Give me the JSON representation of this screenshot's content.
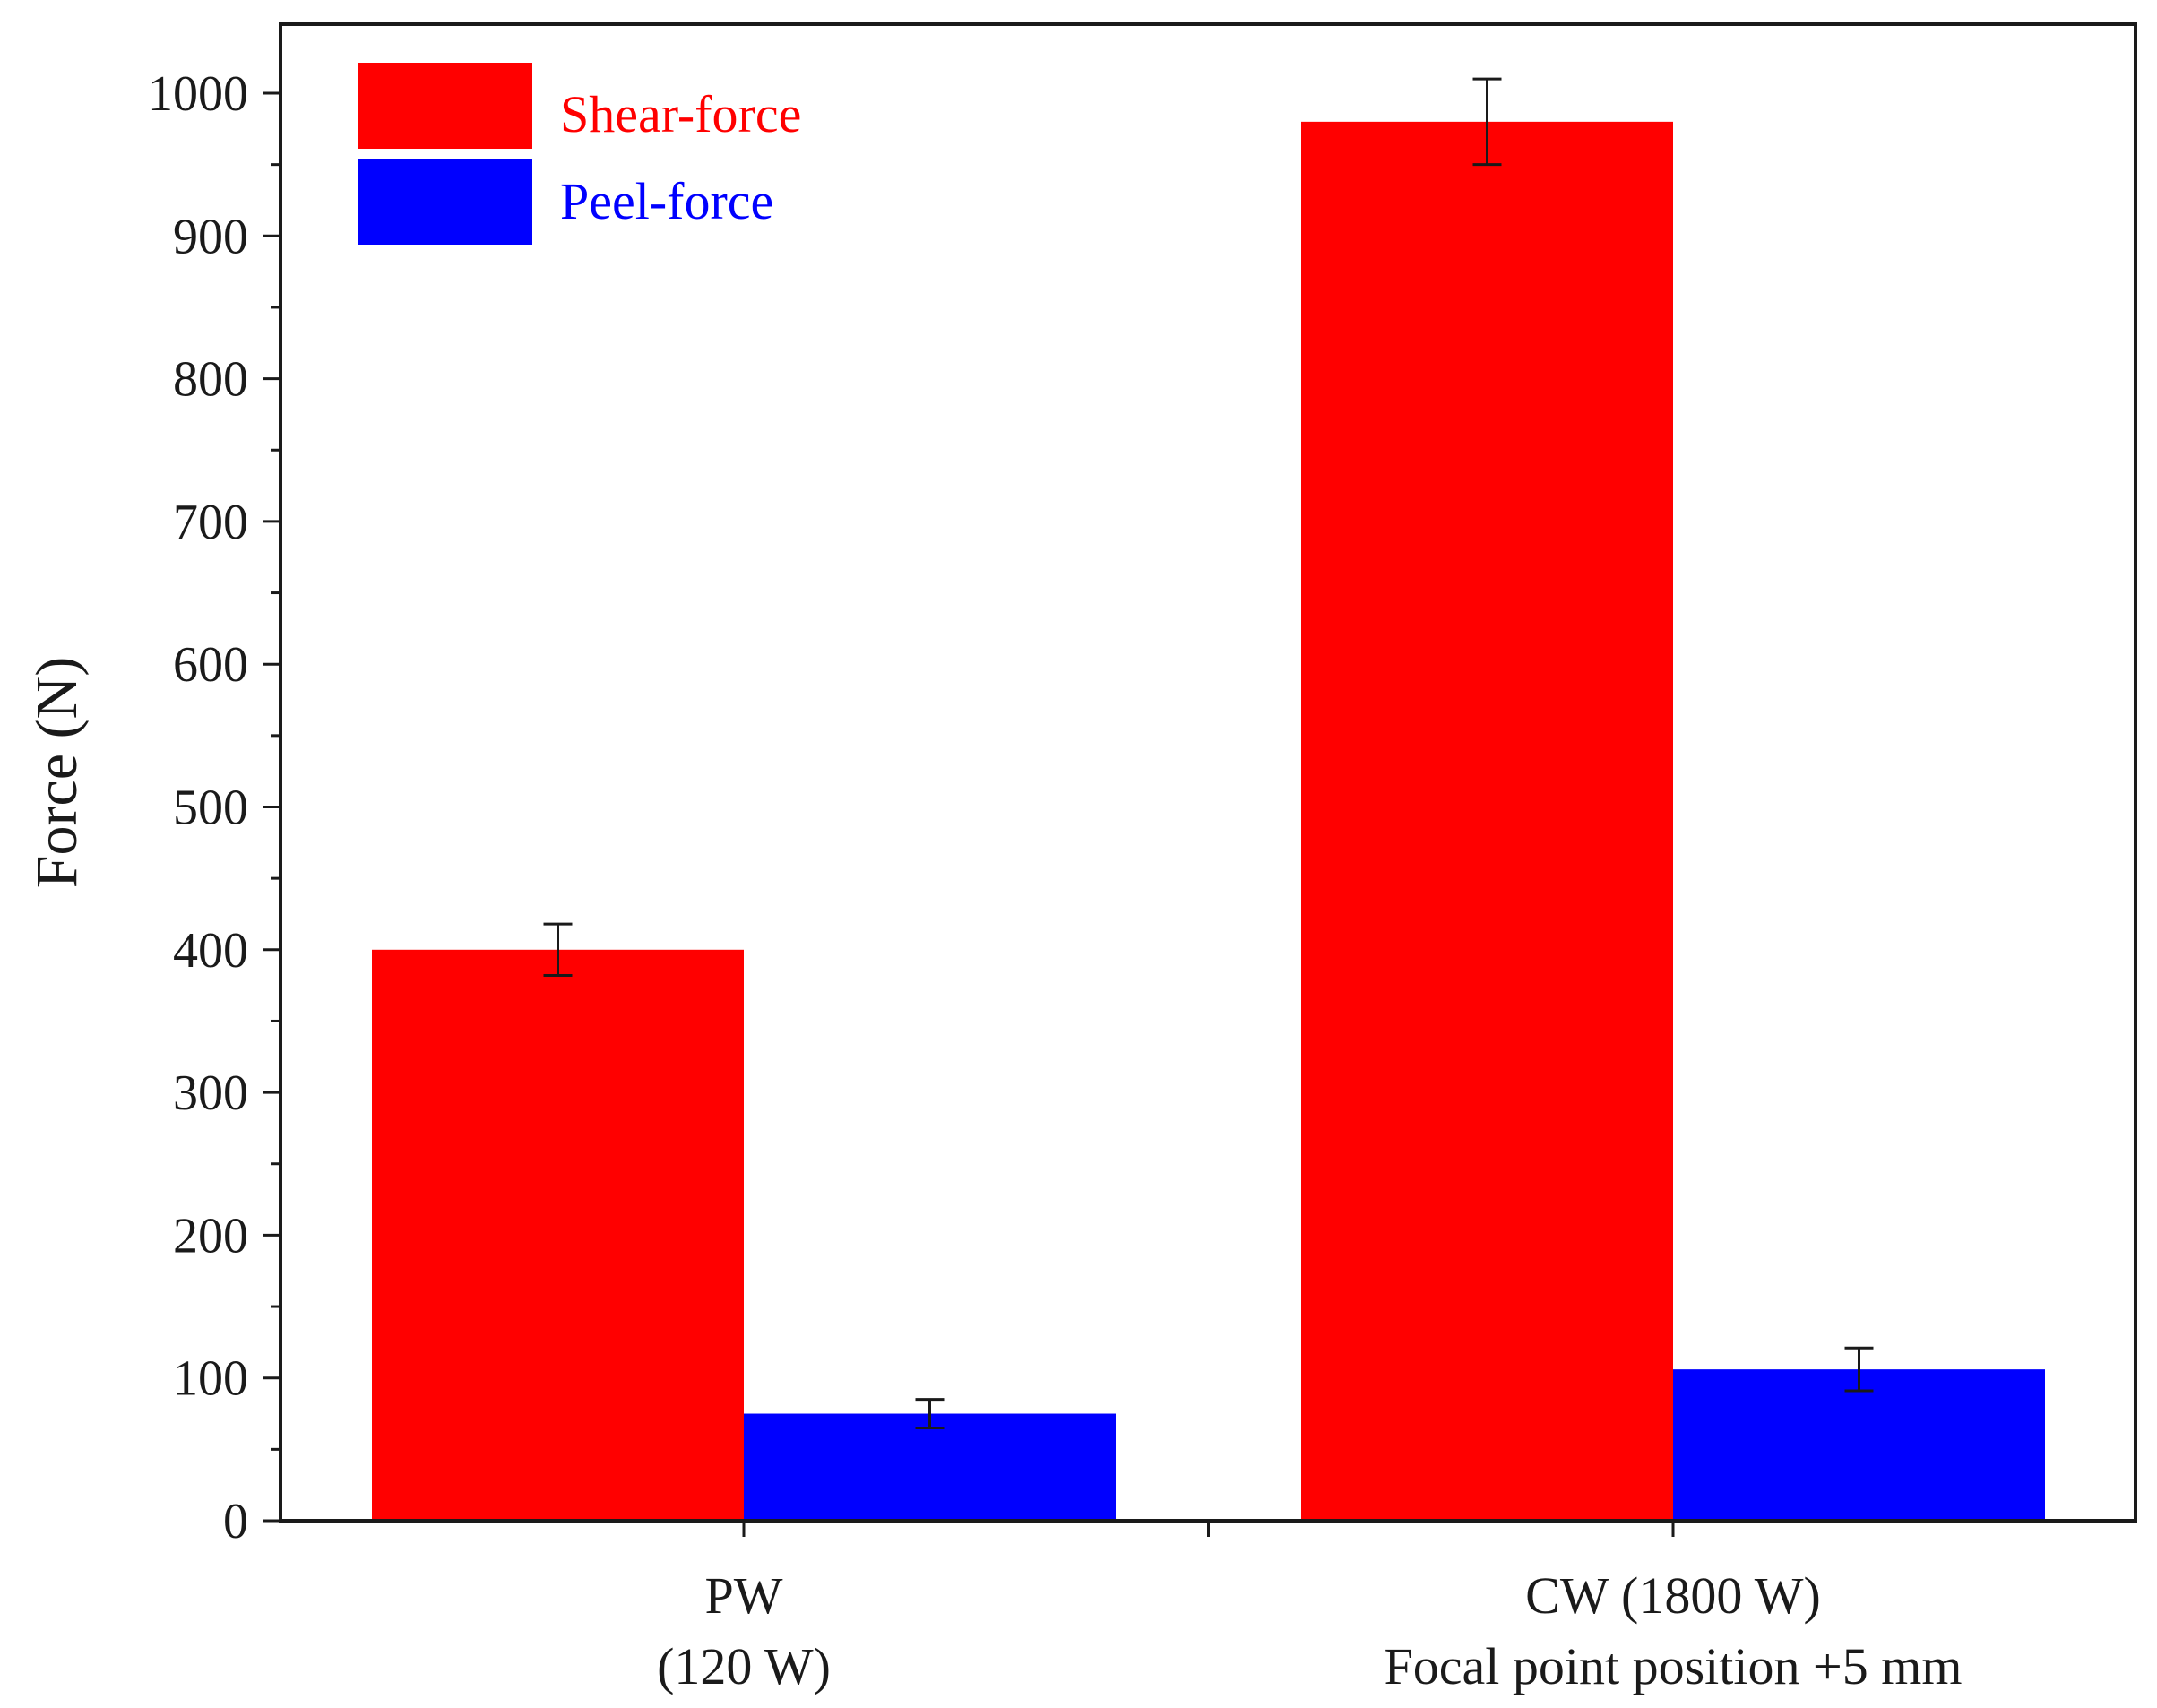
{
  "chart_data": {
    "type": "bar",
    "title": "",
    "xlabel": "",
    "ylabel": "Force (N)",
    "ylim": [
      0,
      1050
    ],
    "yticks": [
      0,
      100,
      200,
      300,
      400,
      500,
      600,
      700,
      800,
      900,
      1000
    ],
    "ytick_labels": [
      "0",
      "100",
      "200",
      "300",
      "400",
      "500",
      "600",
      "700",
      "800",
      "900",
      "1000"
    ],
    "categories": [
      {
        "line1": "PW",
        "line2": "(120 W)"
      },
      {
        "line1": "CW (1800 W)",
        "line2": "Focal point position +5 mm"
      }
    ],
    "series": [
      {
        "name": "Shear-force",
        "color": "#ff0000",
        "values": [
          400,
          980
        ],
        "errors": [
          18,
          30
        ]
      },
      {
        "name": "Peel-force",
        "color": "#0000ff",
        "values": [
          75,
          106
        ],
        "errors": [
          10,
          15
        ]
      }
    ],
    "legend_position": "top-left",
    "grid": false
  }
}
